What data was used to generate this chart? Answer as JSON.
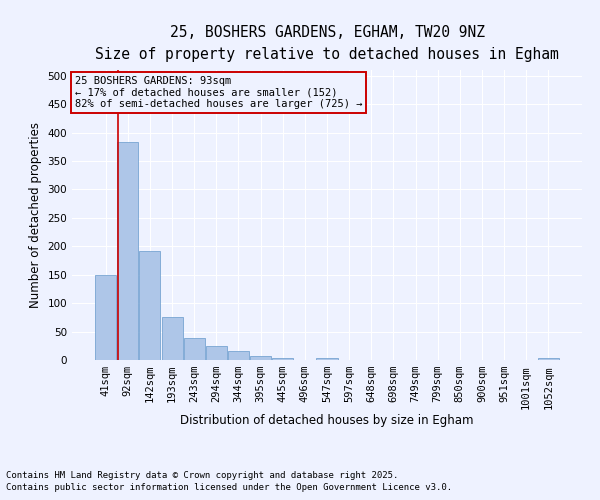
{
  "title_line1": "25, BOSHERS GARDENS, EGHAM, TW20 9NZ",
  "title_line2": "Size of property relative to detached houses in Egham",
  "xlabel": "Distribution of detached houses by size in Egham",
  "ylabel": "Number of detached properties",
  "categories": [
    "41sqm",
    "92sqm",
    "142sqm",
    "193sqm",
    "243sqm",
    "294sqm",
    "344sqm",
    "395sqm",
    "445sqm",
    "496sqm",
    "547sqm",
    "597sqm",
    "648sqm",
    "698sqm",
    "749sqm",
    "799sqm",
    "850sqm",
    "900sqm",
    "951sqm",
    "1001sqm",
    "1052sqm"
  ],
  "values": [
    150,
    383,
    192,
    76,
    38,
    25,
    15,
    7,
    4,
    0,
    4,
    0,
    0,
    0,
    0,
    0,
    0,
    0,
    0,
    0,
    4
  ],
  "bar_color": "#aec6e8",
  "bar_edge_color": "#6699cc",
  "annotation_box_text": "25 BOSHERS GARDENS: 93sqm\n← 17% of detached houses are smaller (152)\n82% of semi-detached houses are larger (725) →",
  "annotation_box_color": "#cc0000",
  "vline_color": "#cc0000",
  "ylim": [
    0,
    510
  ],
  "yticks": [
    0,
    50,
    100,
    150,
    200,
    250,
    300,
    350,
    400,
    450,
    500
  ],
  "footer_line1": "Contains HM Land Registry data © Crown copyright and database right 2025.",
  "footer_line2": "Contains public sector information licensed under the Open Government Licence v3.0.",
  "background_color": "#eef2ff",
  "grid_color": "#ffffff",
  "title_fontsize": 10.5,
  "subtitle_fontsize": 9.5,
  "axis_label_fontsize": 8.5,
  "tick_fontsize": 7.5,
  "footer_fontsize": 6.5,
  "annotation_fontsize": 7.5
}
